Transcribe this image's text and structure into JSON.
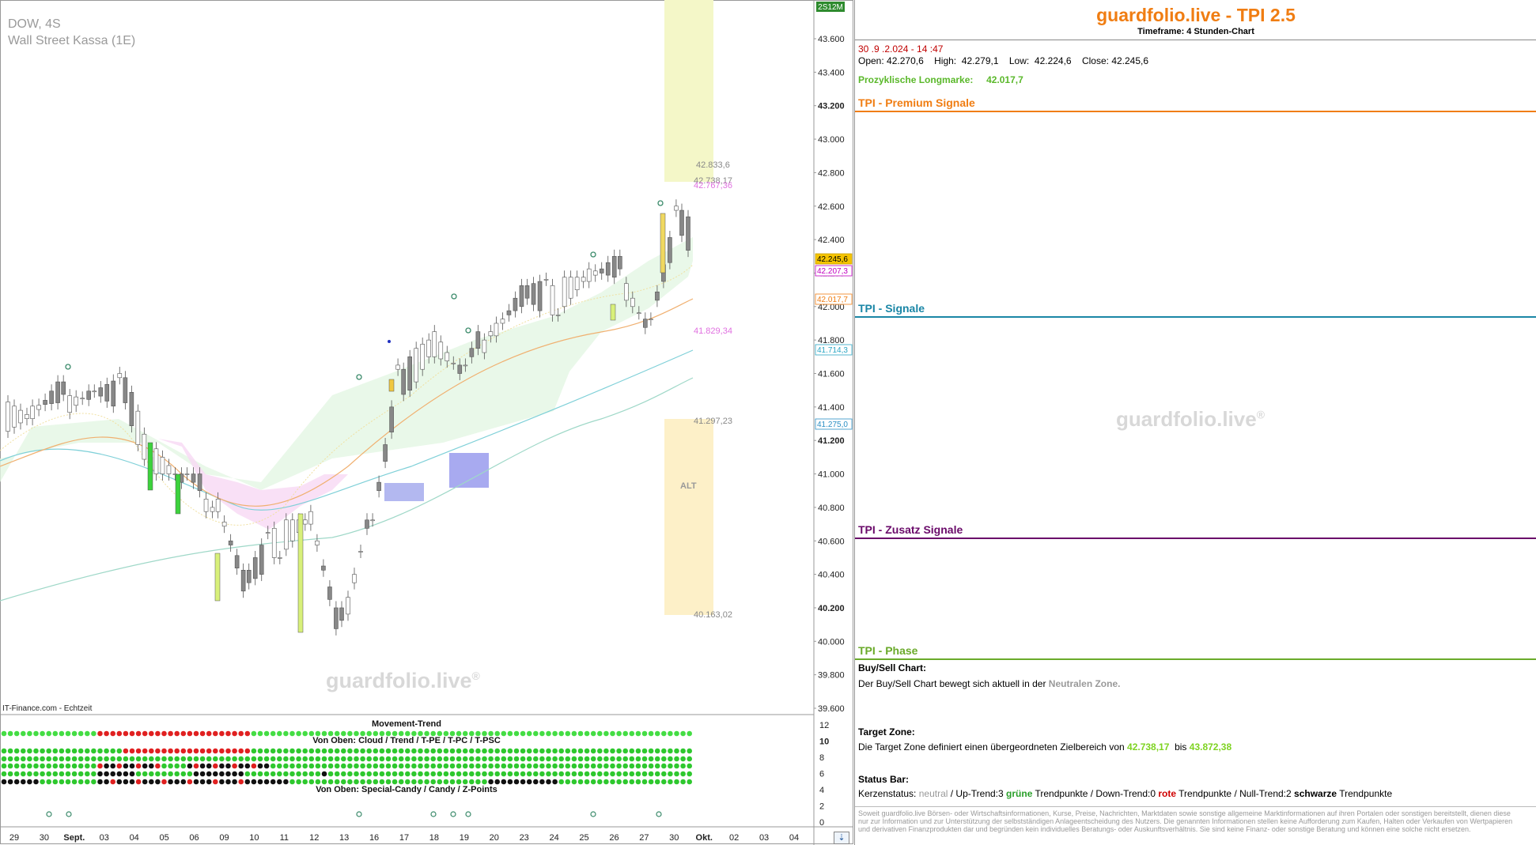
{
  "chart": {
    "symbol": "DOW, 4S",
    "instrument": "Wall Street Kassa (1E)",
    "source": "IT-Finance.com - Echtzeit",
    "watermark": "guardfolio.live",
    "watermark_reg": "®",
    "timeframe_badge": "2S12M",
    "y_labels": [
      "43.600",
      "43.400",
      "43.200",
      "43.000",
      "42.800",
      "42.600",
      "42.400",
      "42.200",
      "42.000",
      "41.800",
      "41.600",
      "41.400",
      "41.200",
      "41.000",
      "40.800",
      "40.600",
      "40.400",
      "40.200",
      "40.000",
      "39.800",
      "39.600"
    ],
    "x_labels": [
      "29",
      "30",
      "Sept.",
      "03",
      "04",
      "05",
      "06",
      "09",
      "10",
      "11",
      "12",
      "13",
      "16",
      "17",
      "18",
      "19",
      "20",
      "23",
      "24",
      "25",
      "26",
      "27",
      "30",
      "Okt.",
      "02",
      "03",
      "04"
    ],
    "price_badges": [
      {
        "text": "42.245,6",
        "color": "#f5c400",
        "fg": "#000"
      },
      {
        "text": "42.207,3",
        "color": "#ffffff",
        "fg": "#c000c0"
      },
      {
        "text": "42.017,7",
        "color": "#ffffff",
        "fg": "#f07d12"
      },
      {
        "text": "41.714,3",
        "color": "#ffffff",
        "fg": "#2aa6c4"
      },
      {
        "text": "41.275,0",
        "color": "#ffffff",
        "fg": "#2a8fc4"
      }
    ],
    "zone_labels": {
      "t1": "42.833,6",
      "t2": "42.738,17",
      "t3": "42.767,36",
      "t4": "41.829,34",
      "t5": "41.297,23",
      "t6": "40.163,02",
      "alt": "ALT"
    },
    "chart_data": {
      "type": "line",
      "x": [
        "29",
        "30",
        "Sept.",
        "03",
        "04",
        "05",
        "06",
        "09",
        "10",
        "11",
        "12",
        "13",
        "16",
        "17",
        "18",
        "19",
        "20",
        "23",
        "24",
        "25",
        "26",
        "27",
        "30"
      ],
      "series": [
        {
          "values": [
            41330,
            41450,
            41520,
            41500,
            41050,
            40950,
            40850,
            40400,
            40600,
            40700,
            40100,
            40750,
            41550,
            41750,
            41600,
            41900,
            42100,
            42050,
            42150,
            42200,
            41950,
            42500,
            42245
          ]
        }
      ],
      "ylim": [
        39600,
        43700
      ]
    },
    "indicator": {
      "title1": "Movement-Trend",
      "title2": "Von Oben: Cloud / Trend / T-PE / T-PC / T-PSC",
      "title3": "Von Oben: Special-Candy / Candy / Z-Points",
      "y_labels": [
        "12",
        "10",
        "8",
        "6",
        "4",
        "2",
        "0"
      ]
    }
  },
  "panel": {
    "title": "guardfolio.live - TPI 2.5",
    "subtitle": "Timeframe: 4 Stunden-Chart",
    "datetime": "30 .9 .2.024  - 14 :47",
    "open_label": "Open:",
    "open": "42.270,6",
    "high_label": "High:",
    "high": "42.279,1",
    "low_label": "Low:",
    "low": "42.224,6",
    "close_label": "Close:",
    "close": "42.245,6",
    "long_label": "Prozyklische Longmarke:",
    "long_value": "42.017,7",
    "s1": "TPI - Premium Signale",
    "s2": "TPI - Signale",
    "s3": "TPI - Zusatz Signale",
    "s4": "TPI - Phase",
    "watermark": "guardfolio.live",
    "watermark_reg": "®",
    "buy_title": "Buy/Sell Chart:",
    "buy_text": "Der Buy/Sell Chart bewegt sich aktuell in der",
    "buy_zone": "Neutralen Zone.",
    "target_title": "Target Zone:",
    "target_text": "Die Target Zone definiert einen übergeordneten Zielbereich von",
    "target_from": "42.738,17",
    "target_mid": "bis",
    "target_to": "43.872,38",
    "status_title": "Status Bar:",
    "status_a": "Kerzenstatus:",
    "status_b": "neutral",
    "status_c": "/ Up-Trend:3",
    "status_d": "grüne",
    "status_e": "Trendpunkte  / Down-Trend:0",
    "status_f": "rote",
    "status_g": "Trendpunkte / Null-Trend:2",
    "status_h": "schwarze",
    "status_i": "Trendpunkte",
    "disclaimer": "Soweit guardfolio.live Börsen- oder Wirtschaftsinformationen, Kurse, Preise, Nachrichten, Marktdaten sowie sonstige allgemeine Marktinformationen auf ihren Portalen oder sonstigen bereitstellt, dienen diese nur zur Information und zur Unterstützung der selbstständigen Anlageentscheidung des Nutzers. Die genannten Informationen stellen keine Aufforderung zum Kaufen, Halten oder Verkaufen von Wertpapieren und derivativen Finanzprodukten dar und begründen kein individuelles Beratungs- oder Auskunftsverhältnis. Sie sind keine Finanz- oder sonstige Beratung und können eine solche nicht ersetzen."
  },
  "colors": {
    "orange": "#f07d12",
    "teal": "#1a86a6",
    "purple": "#6a0a6a",
    "green": "#6aaa2a",
    "lime": "#7ed321"
  }
}
